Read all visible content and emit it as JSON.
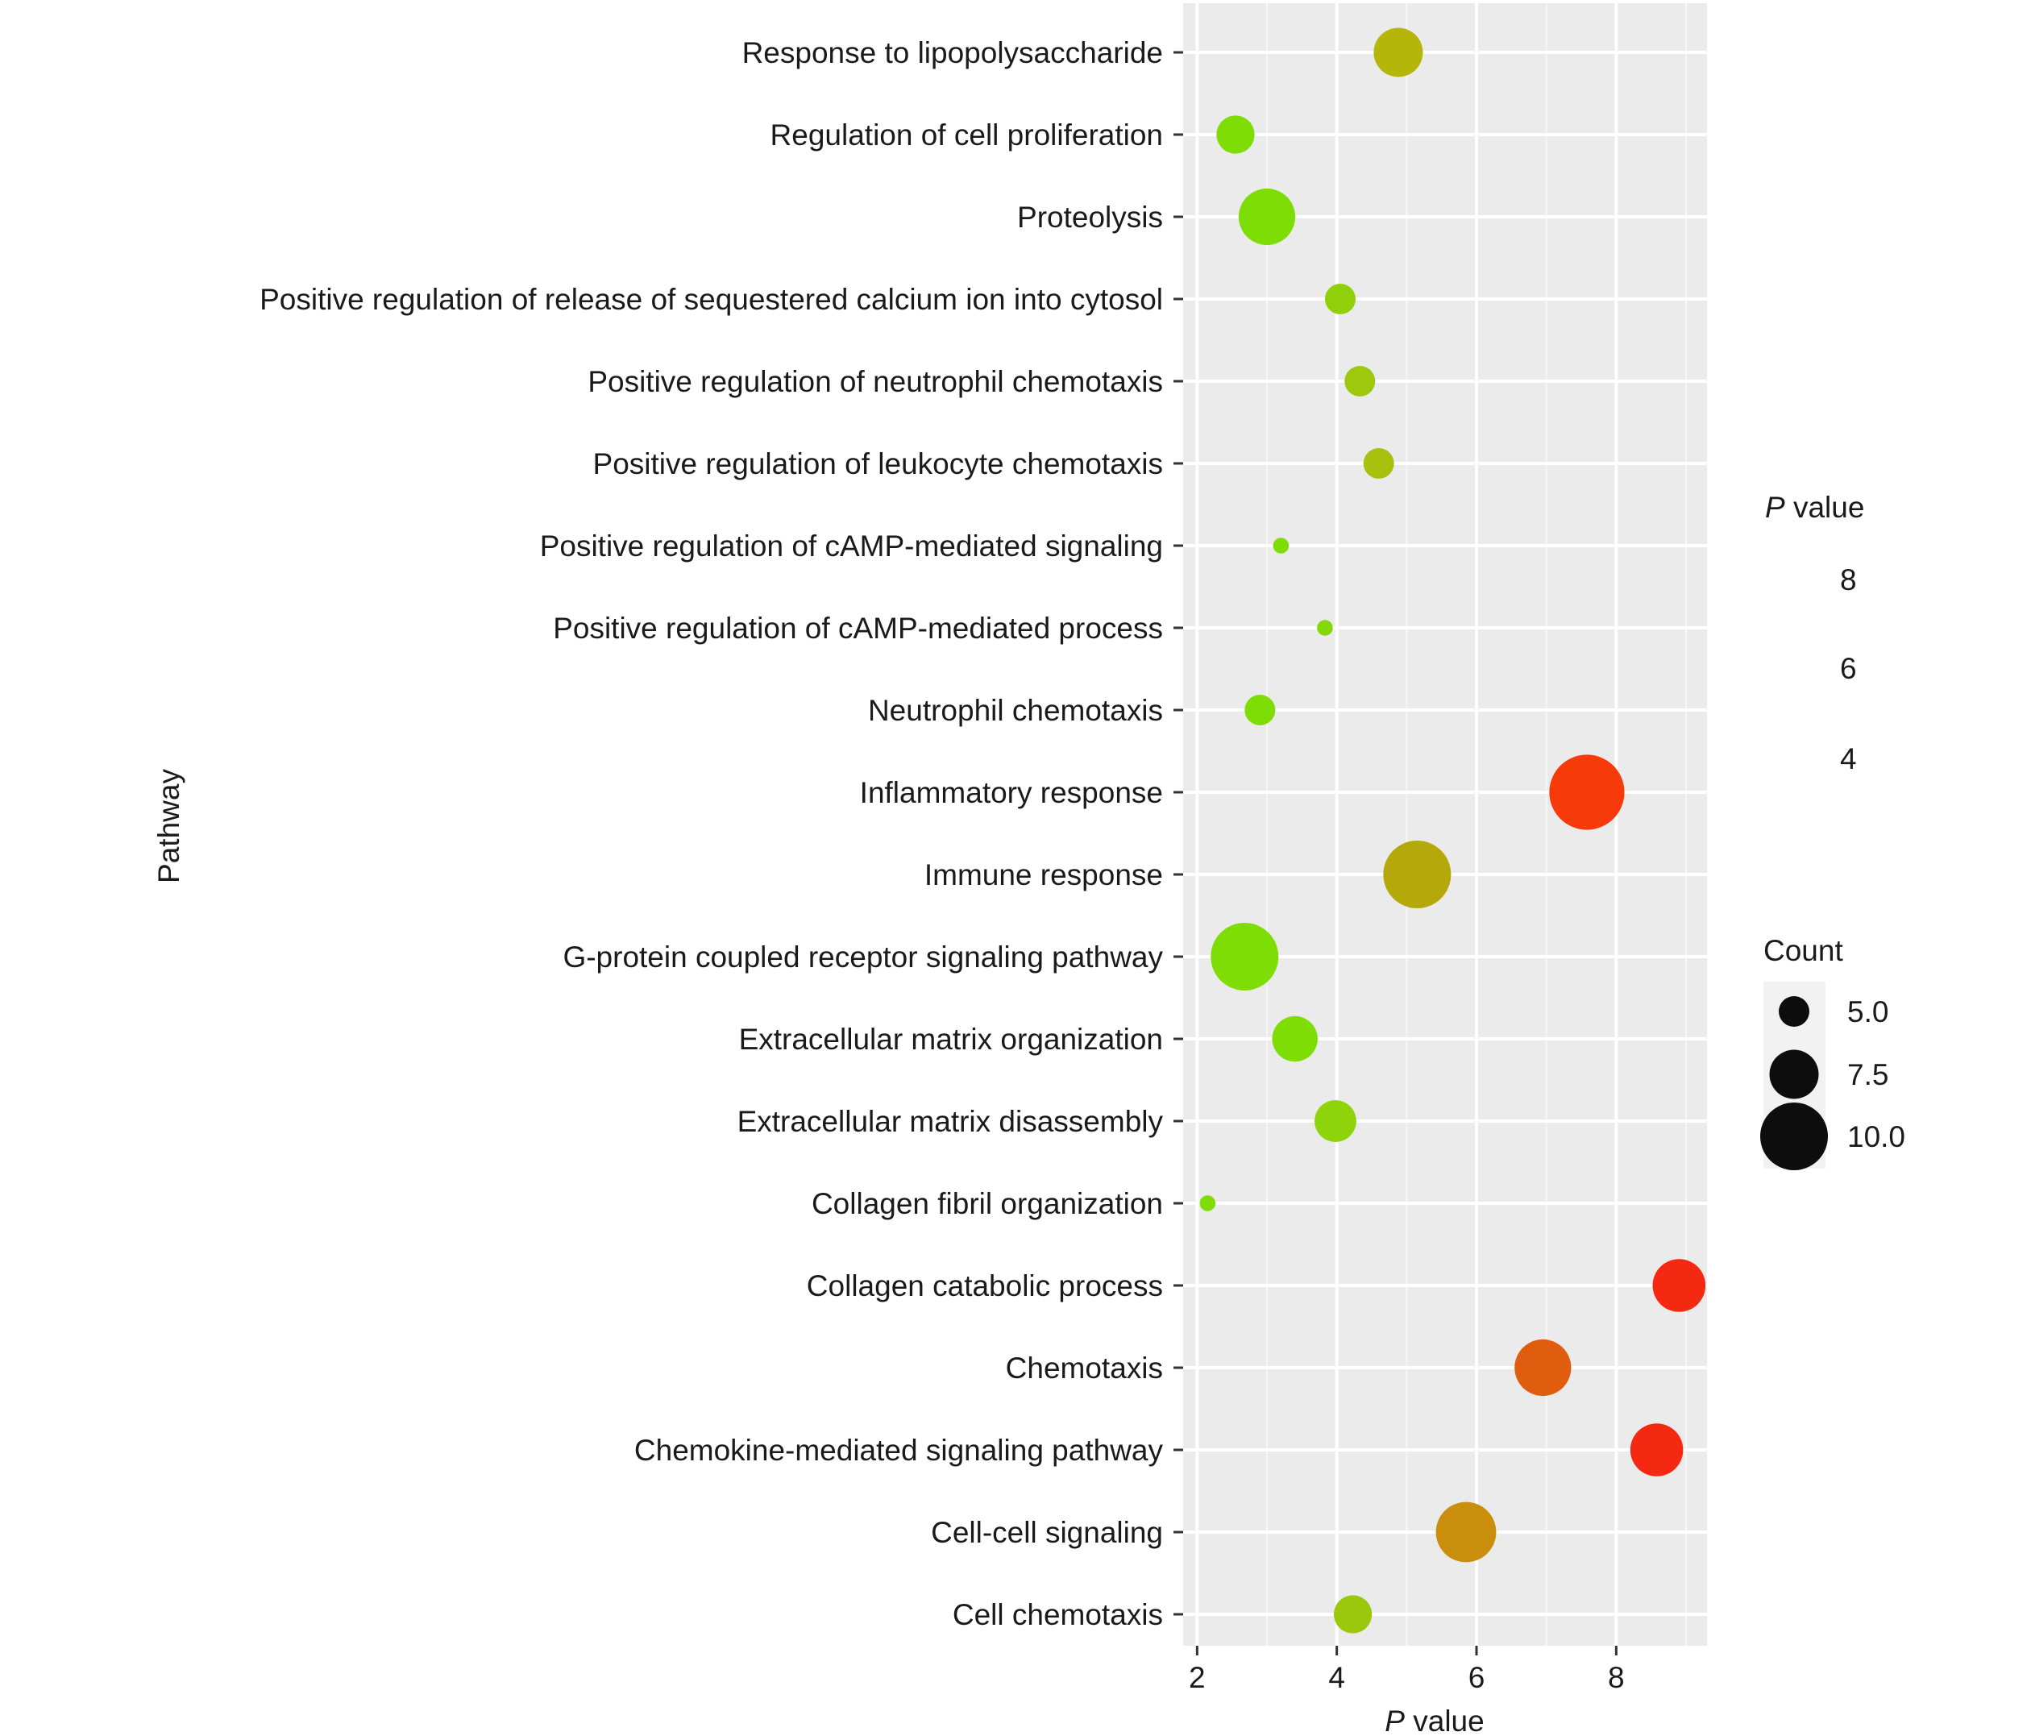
{
  "chart_data": {
    "type": "scatter",
    "xlabel_prefix": "P",
    "xlabel_suffix": " value",
    "ylabel": "Pathway",
    "xlim": [
      1.8,
      9.3
    ],
    "xticks": [
      2,
      4,
      6,
      8
    ],
    "categories": [
      "Response to lipopolysaccharide",
      "Regulation of cell proliferation",
      "Proteolysis",
      "Positive regulation of release of sequestered calcium ion into cytosol",
      "Positive regulation of neutrophil chemotaxis",
      "Positive regulation of leukocyte chemotaxis",
      "Positive regulation of cAMP-mediated signaling",
      "Positive regulation of cAMP-mediated process",
      "Neutrophil chemotaxis",
      "Inflammatory response",
      "Immune response",
      "G-protein coupled receptor signaling pathway",
      "Extracellular matrix organization",
      "Extracellular matrix disassembly",
      "Collagen fibril organization",
      "Collagen catabolic process",
      "Chemotaxis",
      "Chemokine-mediated signaling pathway",
      "Cell-cell signaling",
      "Cell chemotaxis"
    ],
    "points": [
      {
        "pathway": "Response to lipopolysaccharide",
        "x": 4.88,
        "count": 7.5,
        "color": "#b5b50a"
      },
      {
        "pathway": "Regulation of cell proliferation",
        "x": 2.55,
        "count": 6,
        "color": "#7fdd06"
      },
      {
        "pathway": "Proteolysis",
        "x": 3.0,
        "count": 8.5,
        "color": "#7fdd06"
      },
      {
        "pathway": "Positive regulation of release of sequestered calcium ion into cytosol",
        "x": 4.05,
        "count": 5,
        "color": "#8fd00a"
      },
      {
        "pathway": "Positive regulation of neutrophil chemotaxis",
        "x": 4.33,
        "count": 5,
        "color": "#9ec80c"
      },
      {
        "pathway": "Positive regulation of leukocyte chemotaxis",
        "x": 4.6,
        "count": 5,
        "color": "#a6c20e"
      },
      {
        "pathway": "Positive regulation of cAMP-mediated signaling",
        "x": 3.2,
        "count": 3,
        "color": "#7fdd06"
      },
      {
        "pathway": "Positive regulation of cAMP-mediated process",
        "x": 3.83,
        "count": 3,
        "color": "#85d808"
      },
      {
        "pathway": "Neutrophil chemotaxis",
        "x": 2.9,
        "count": 5,
        "color": "#7fdd06"
      },
      {
        "pathway": "Inflammatory response",
        "x": 7.58,
        "count": 11,
        "color": "#f73a0a"
      },
      {
        "pathway": "Immune response",
        "x": 5.15,
        "count": 10,
        "color": "#b5a80a"
      },
      {
        "pathway": "G-protein coupled receptor signaling pathway",
        "x": 2.68,
        "count": 10,
        "color": "#7fdd06"
      },
      {
        "pathway": "Extracellular matrix organization",
        "x": 3.4,
        "count": 7,
        "color": "#7fdd06"
      },
      {
        "pathway": "Extracellular matrix disassembly",
        "x": 3.98,
        "count": 6.5,
        "color": "#8fd40a"
      },
      {
        "pathway": "Collagen fibril organization",
        "x": 2.15,
        "count": 3,
        "color": "#7fdd06"
      },
      {
        "pathway": "Collagen catabolic process",
        "x": 8.9,
        "count": 8,
        "color": "#f52812"
      },
      {
        "pathway": "Chemotaxis",
        "x": 6.95,
        "count": 8.5,
        "color": "#e05d10"
      },
      {
        "pathway": "Chemokine-mediated signaling pathway",
        "x": 8.58,
        "count": 8,
        "color": "#f52812"
      },
      {
        "pathway": "Cell-cell signaling",
        "x": 5.85,
        "count": 9,
        "color": "#c98f0c"
      },
      {
        "pathway": "Cell chemotaxis",
        "x": 4.23,
        "count": 6,
        "color": "#9ac80c"
      }
    ],
    "legend_color": {
      "title_prefix": "P",
      "title_suffix": " value",
      "labels": [
        "8",
        "6",
        "4"
      ]
    },
    "legend_size": {
      "title": "Count",
      "entries": [
        {
          "label": "5.0",
          "count": 5
        },
        {
          "label": "7.5",
          "count": 7.5
        },
        {
          "label": "10.0",
          "count": 10
        }
      ]
    },
    "grid": true,
    "panel_color": "#ebebeb"
  }
}
